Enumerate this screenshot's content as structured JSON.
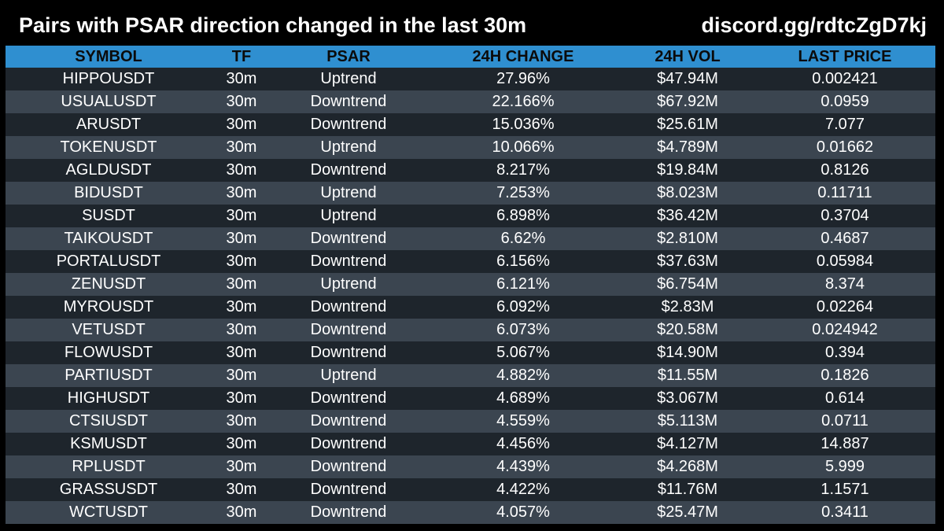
{
  "header": {
    "title": "Pairs with PSAR direction changed in the last 30m",
    "link": "discord.gg/rdtcZgD7kj"
  },
  "table": {
    "columns": [
      "SYMBOL",
      "TF",
      "PSAR",
      "24H CHANGE",
      "24H VOL",
      "LAST PRICE"
    ],
    "rows": [
      [
        "HIPPOUSDT",
        "30m",
        "Uptrend",
        "27.96%",
        "$47.94M",
        "0.002421"
      ],
      [
        "USUALUSDT",
        "30m",
        "Downtrend",
        "22.166%",
        "$67.92M",
        "0.0959"
      ],
      [
        "ARUSDT",
        "30m",
        "Downtrend",
        "15.036%",
        "$25.61M",
        "7.077"
      ],
      [
        "TOKENUSDT",
        "30m",
        "Uptrend",
        "10.066%",
        "$4.789M",
        "0.01662"
      ],
      [
        "AGLDUSDT",
        "30m",
        "Downtrend",
        "8.217%",
        "$19.84M",
        "0.8126"
      ],
      [
        "BIDUSDT",
        "30m",
        "Uptrend",
        "7.253%",
        "$8.023M",
        "0.11711"
      ],
      [
        "SUSDT",
        "30m",
        "Uptrend",
        "6.898%",
        "$36.42M",
        "0.3704"
      ],
      [
        "TAIKOUSDT",
        "30m",
        "Downtrend",
        "6.62%",
        "$2.810M",
        "0.4687"
      ],
      [
        "PORTALUSDT",
        "30m",
        "Downtrend",
        "6.156%",
        "$37.63M",
        "0.05984"
      ],
      [
        "ZENUSDT",
        "30m",
        "Uptrend",
        "6.121%",
        "$6.754M",
        "8.374"
      ],
      [
        "MYROUSDT",
        "30m",
        "Downtrend",
        "6.092%",
        "$2.83M",
        "0.02264"
      ],
      [
        "VETUSDT",
        "30m",
        "Downtrend",
        "6.073%",
        "$20.58M",
        "0.024942"
      ],
      [
        "FLOWUSDT",
        "30m",
        "Downtrend",
        "5.067%",
        "$14.90M",
        "0.394"
      ],
      [
        "PARTIUSDT",
        "30m",
        "Uptrend",
        "4.882%",
        "$11.55M",
        "0.1826"
      ],
      [
        "HIGHUSDT",
        "30m",
        "Downtrend",
        "4.689%",
        "$3.067M",
        "0.614"
      ],
      [
        "CTSIUSDT",
        "30m",
        "Downtrend",
        "4.559%",
        "$5.113M",
        "0.0711"
      ],
      [
        "KSMUSDT",
        "30m",
        "Downtrend",
        "4.456%",
        "$4.127M",
        "14.887"
      ],
      [
        "RPLUSDT",
        "30m",
        "Downtrend",
        "4.439%",
        "$4.268M",
        "5.999"
      ],
      [
        "GRASSUSDT",
        "30m",
        "Downtrend",
        "4.422%",
        "$11.76M",
        "1.1571"
      ],
      [
        "WCTUSDT",
        "30m",
        "Downtrend",
        "4.057%",
        "$25.47M",
        "0.3411"
      ]
    ]
  },
  "colors": {
    "background": "#000000",
    "header_row": "#2f8fd0",
    "row_dark": "#1e252c",
    "row_light": "#3b4550",
    "text": "#ffffff"
  }
}
